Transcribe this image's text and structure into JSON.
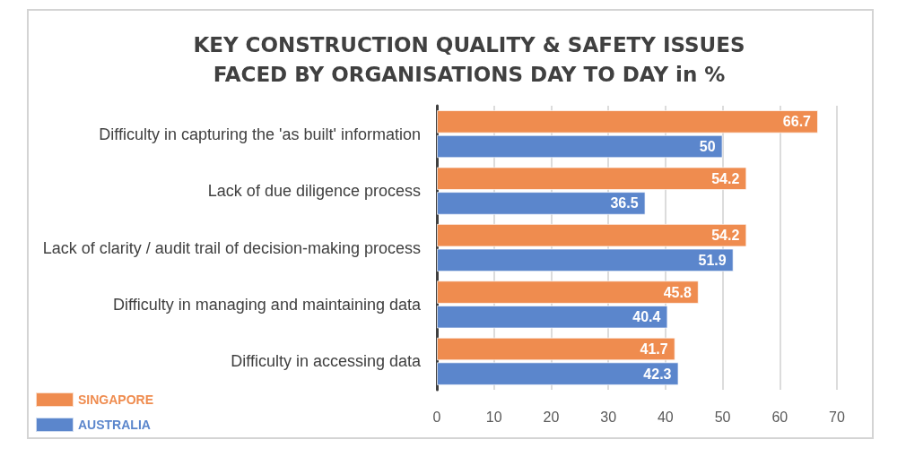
{
  "chart_data": {
    "type": "bar",
    "orientation": "horizontal",
    "title": "KEY CONSTRUCTION QUALITY & SAFETY ISSUES\nFACED BY ORGANISATIONS DAY TO DAY in %",
    "categories": [
      "Difficulty in capturing the 'as built' information",
      "Lack of due diligence process",
      "Lack of clarity / audit trail of decision-making process",
      "Difficulty in managing and maintaining data",
      "Difficulty in accessing data"
    ],
    "series": [
      {
        "name": "SINGAPORE",
        "color": "#ef8c4f",
        "values": [
          66.7,
          54.2,
          54.2,
          45.8,
          41.7
        ]
      },
      {
        "name": "AUSTRALIA",
        "color": "#5b86cc",
        "values": [
          50,
          36.5,
          51.9,
          40.4,
          42.3
        ]
      }
    ],
    "xlim": [
      0,
      70
    ],
    "xticks": [
      0,
      10,
      20,
      30,
      40,
      50,
      60,
      70
    ],
    "grid": "x",
    "legend": "bottom left",
    "data_labels": true
  }
}
